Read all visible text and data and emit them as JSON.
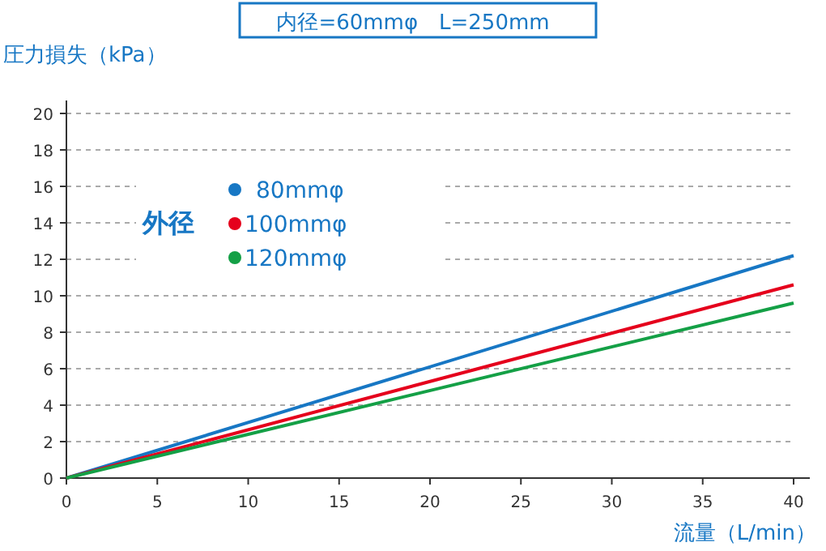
{
  "chart_data": {
    "type": "line",
    "title": "内径=60mmφ　L=250mm",
    "xlabel": "流量（L/min）",
    "ylabel": "圧力損失（kPa）",
    "legend_title": "外径",
    "x": [
      0,
      40
    ],
    "series": [
      {
        "name": "80mmφ",
        "color": "#1777c4",
        "values": [
          0,
          12.2
        ]
      },
      {
        "name": "100mmφ",
        "color": "#e5001c",
        "values": [
          0,
          10.6
        ]
      },
      {
        "name": "120mmφ",
        "color": "#14a046",
        "values": [
          0,
          9.6
        ]
      }
    ],
    "xlim": [
      0,
      40
    ],
    "ylim": [
      0,
      20
    ],
    "xticks": [
      0,
      5,
      10,
      15,
      20,
      25,
      30,
      35,
      40
    ],
    "yticks": [
      0,
      2,
      4,
      6,
      8,
      10,
      12,
      14,
      16,
      18,
      20
    ],
    "grid": "y",
    "legend": "top left",
    "marker": "none",
    "line_style": "solid"
  }
}
